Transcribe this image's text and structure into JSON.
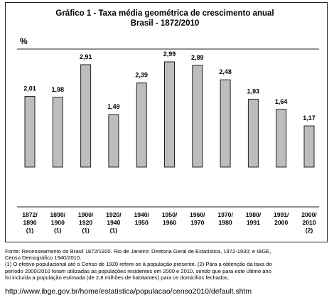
{
  "chart_data": {
    "type": "bar",
    "title_line1": "Gráfico 1 - Taxa média geométrica de crescimento anual",
    "title_line2": "Brasil - 1872/2010",
    "unit": "%",
    "categories": [
      [
        "1872/",
        "1890",
        "(1)"
      ],
      [
        "1890/",
        "1900",
        "(1)"
      ],
      [
        "1900/",
        "1920",
        "(1)"
      ],
      [
        "1920/",
        "1940",
        "(1)"
      ],
      [
        "1940/",
        "1950",
        ""
      ],
      [
        "1950/",
        "1960",
        ""
      ],
      [
        "1960/",
        "1970",
        ""
      ],
      [
        "1970/",
        "1980",
        ""
      ],
      [
        "1980/",
        "1991",
        ""
      ],
      [
        "1991/",
        "2000",
        ""
      ],
      [
        "2000/",
        "2010",
        "(2)"
      ]
    ],
    "values": [
      2.01,
      1.98,
      2.91,
      1.49,
      2.39,
      2.99,
      2.89,
      2.48,
      1.93,
      1.64,
      1.17
    ],
    "value_labels": [
      "2,01",
      "1,98",
      "2,91",
      "1,49",
      "2,39",
      "2,99",
      "2,89",
      "2,48",
      "1,93",
      "1,64",
      "1,17"
    ],
    "ylim": [
      0,
      3.2
    ],
    "grid": false,
    "bar_color": "#bdbdbd",
    "bar_stroke": "#222222"
  },
  "notes": {
    "source1": "Fonte: Recenseamento do Brasil 1872/1920. Rio de Janeiro: Diretoria Geral de Estatística, 1872-1930; e IBGE,",
    "source2": "Censo Demográfico 1940/2010.",
    "note1": "(1) O efetivo populacional até o Censo de 1920 refere-se à população presente. (2) Para a obtenção da taxa do",
    "note2": "período 2000/2010 foram utilizadas as populações residentes em 2000 e 2010, sendo que para este último ano",
    "note3": "foi incluída a população estimada (de 2,8 milhões de habitantes) para os domicílios fechados."
  },
  "url": "http://www.ibge.gov.br/home/estatistica/populacao/censo2010/default.shtm"
}
